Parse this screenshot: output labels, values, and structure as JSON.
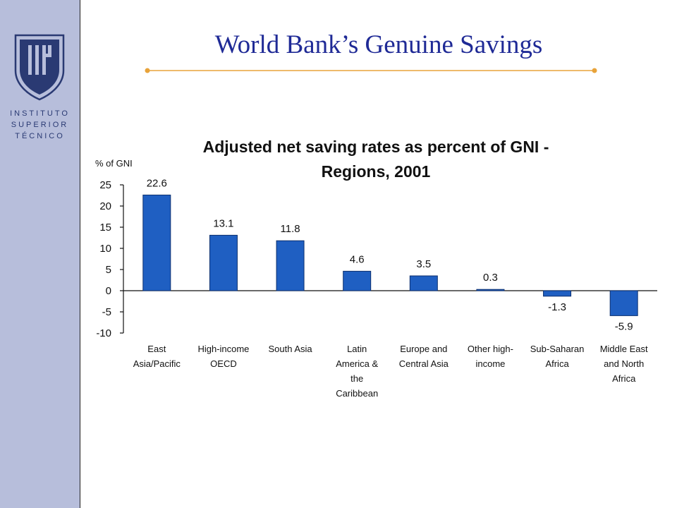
{
  "slide": {
    "title": "World Bank’s Genuine Savings",
    "logo_lines": [
      "INSTITUTO",
      "SUPERIOR",
      "TÉCNICO"
    ],
    "logo_mark": "IST",
    "colors": {
      "sidebar": "#b7bedb",
      "title": "#1f2a96",
      "rule": "#e8a33a",
      "bar": "#1f5fc2"
    }
  },
  "chart_data": {
    "type": "bar",
    "title_lines": [
      "Adjusted net saving rates as percent of GNI -",
      "Regions, 2001"
    ],
    "ylabel": "% of GNI",
    "ylim": [
      -10,
      25
    ],
    "yticks": [
      25,
      20,
      15,
      10,
      5,
      0,
      -5,
      -10
    ],
    "categories": [
      [
        "East",
        "Asia/Pacific"
      ],
      [
        "High-income",
        "OECD"
      ],
      [
        "South Asia"
      ],
      [
        "Latin",
        "America &",
        "the",
        "Caribbean"
      ],
      [
        "Europe and",
        "Central Asia"
      ],
      [
        "Other high-",
        "income"
      ],
      [
        "Sub-Saharan",
        "Africa"
      ],
      [
        "Middle East",
        "and North",
        "Africa"
      ]
    ],
    "values": [
      22.6,
      13.1,
      11.8,
      4.6,
      3.5,
      0.3,
      -1.3,
      -5.9
    ],
    "data_labels": [
      "22.6",
      "13.1",
      "11.8",
      "4.6",
      "3.5",
      "0.3",
      "-1.3",
      "-5.9"
    ],
    "grid": false
  }
}
